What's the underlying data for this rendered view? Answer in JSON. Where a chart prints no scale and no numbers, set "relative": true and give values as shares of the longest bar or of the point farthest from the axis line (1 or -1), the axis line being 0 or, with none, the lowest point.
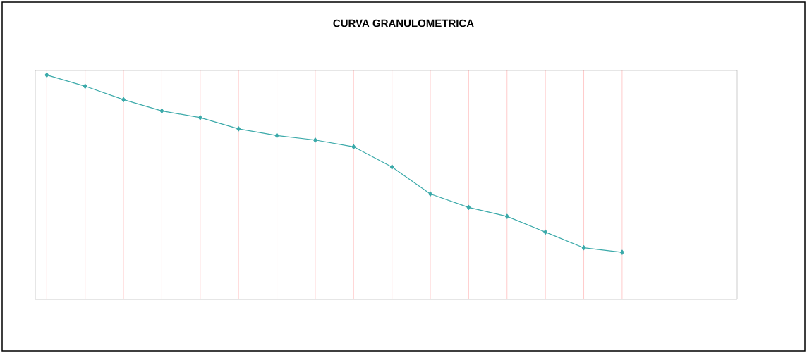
{
  "chart_data": {
    "type": "line",
    "title": "CURVA GRANULOMETRICA",
    "categories": [
      null,
      null,
      null,
      null,
      null,
      null,
      null,
      null,
      null,
      null,
      null,
      null,
      null,
      null,
      null,
      null
    ],
    "values": [
      1,
      0.95,
      0.89,
      0.84,
      0.81,
      0.76,
      0.73,
      0.71,
      0.68,
      0.59,
      0.47,
      0.41,
      0.37,
      0.3,
      0.23,
      0.21
    ],
    "color": "#3aa9a9",
    "marker": "diamond",
    "relative": true,
    "grid": true
  }
}
